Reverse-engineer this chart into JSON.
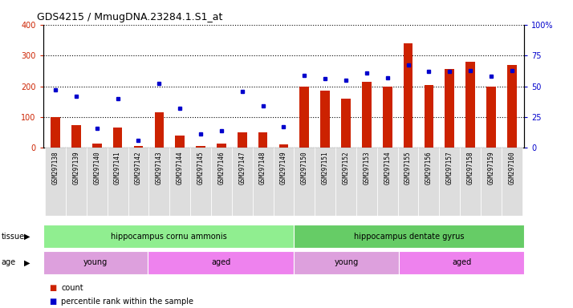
{
  "title": "GDS4215 / MmugDNA.23284.1.S1_at",
  "samples": [
    "GSM297138",
    "GSM297139",
    "GSM297140",
    "GSM297141",
    "GSM297142",
    "GSM297143",
    "GSM297144",
    "GSM297145",
    "GSM297146",
    "GSM297147",
    "GSM297148",
    "GSM297149",
    "GSM297150",
    "GSM297151",
    "GSM297152",
    "GSM297153",
    "GSM297154",
    "GSM297155",
    "GSM297156",
    "GSM297157",
    "GSM297158",
    "GSM297159",
    "GSM297160"
  ],
  "counts": [
    100,
    75,
    15,
    65,
    5,
    115,
    40,
    5,
    15,
    50,
    50,
    10,
    200,
    185,
    160,
    215,
    200,
    340,
    205,
    255,
    280,
    200,
    270
  ],
  "percentile": [
    47,
    42,
    16,
    40,
    6,
    52,
    32,
    11,
    14,
    46,
    34,
    17,
    59,
    56,
    55,
    61,
    57,
    67,
    62,
    62,
    63,
    58,
    63
  ],
  "tissue_groups": [
    {
      "label": "hippocampus cornu ammonis",
      "start": 0,
      "end": 12,
      "color": "#90EE90"
    },
    {
      "label": "hippocampus dentate gyrus",
      "start": 12,
      "end": 23,
      "color": "#66CC66"
    }
  ],
  "age_groups": [
    {
      "label": "young",
      "start": 0,
      "end": 5,
      "color": "#DDA0DD"
    },
    {
      "label": "aged",
      "start": 5,
      "end": 12,
      "color": "#EE82EE"
    },
    {
      "label": "young",
      "start": 12,
      "end": 17,
      "color": "#DDA0DD"
    },
    {
      "label": "aged",
      "start": 17,
      "end": 23,
      "color": "#EE82EE"
    }
  ],
  "bar_color": "#CC2200",
  "dot_color": "#0000CC",
  "left_ylim": [
    0,
    400
  ],
  "right_ylim": [
    0,
    100
  ],
  "left_yticks": [
    0,
    100,
    200,
    300,
    400
  ],
  "right_yticks": [
    0,
    25,
    50,
    75,
    100
  ],
  "right_yticklabels": [
    "0",
    "25",
    "50",
    "75",
    "100%"
  ],
  "bg_color": "#FFFFFF",
  "xtick_bg": "#DDDDDD",
  "grid_color": "#000000",
  "tissue_label_color": "#000000",
  "tissue_arrow_color": "#000000"
}
